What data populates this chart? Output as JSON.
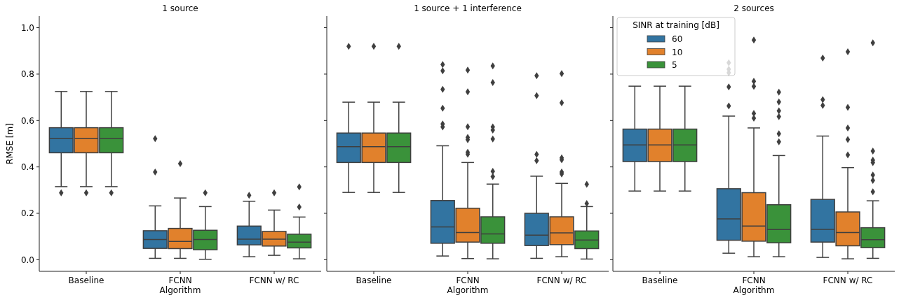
{
  "chart_data": [
    {
      "type": "box",
      "title": "1 source",
      "xlabel": "Algorithm",
      "ylabel": "RMSE [m]",
      "categories": [
        "Baseline",
        "FCNN",
        "FCNN w/ RC"
      ],
      "ylim": [
        -0.05,
        1.05
      ],
      "yticks": [
        {
          "value": 0,
          "label": "0.0"
        },
        0.2,
        0.4,
        0.6,
        0.8,
        {
          "value": 1,
          "label": "1.0"
        }
      ],
      "grid": false,
      "legend": false,
      "marker": "diamond",
      "series": [
        {
          "color": "#3274a1",
          "boxes": [
            {
              "low": 0.315,
              "q1": 0.461,
              "median": 0.522,
              "q3": 0.569,
              "high": 0.725,
              "outliers": [
                0.288
              ]
            },
            {
              "low": 0.006,
              "q1": 0.049,
              "median": 0.087,
              "q3": 0.125,
              "high": 0.232,
              "outliers": [
                0.522,
                0.378
              ]
            },
            {
              "low": 0.013,
              "q1": 0.064,
              "median": 0.089,
              "q3": 0.145,
              "high": 0.252,
              "outliers": [
                0.278
              ]
            }
          ]
        },
        {
          "color": "#e1812c",
          "boxes": [
            {
              "low": 0.315,
              "q1": 0.461,
              "median": 0.522,
              "q3": 0.569,
              "high": 0.725,
              "outliers": [
                0.288
              ]
            },
            {
              "low": 0.006,
              "q1": 0.048,
              "median": 0.079,
              "q3": 0.135,
              "high": 0.266,
              "outliers": [
                0.414
              ]
            },
            {
              "low": 0.019,
              "q1": 0.059,
              "median": 0.089,
              "q3": 0.122,
              "high": 0.214,
              "outliers": [
                0.288
              ]
            }
          ]
        },
        {
          "color": "#3a923a",
          "boxes": [
            {
              "low": 0.315,
              "q1": 0.461,
              "median": 0.522,
              "q3": 0.569,
              "high": 0.725,
              "outliers": [
                0.288
              ]
            },
            {
              "low": 0.002,
              "q1": 0.043,
              "median": 0.087,
              "q3": 0.127,
              "high": 0.229,
              "outliers": [
                0.288
              ]
            },
            {
              "low": 0.004,
              "q1": 0.051,
              "median": 0.076,
              "q3": 0.11,
              "high": 0.184,
              "outliers": [
                0.314,
                0.227
              ]
            }
          ]
        }
      ]
    },
    {
      "type": "box",
      "title": "1 source + 1 interference",
      "xlabel": "Algorithm",
      "categories": [
        "Baseline",
        "FCNN",
        "FCNN w/ RC"
      ],
      "ylim": [
        -0.05,
        1.05
      ],
      "yticks": [
        0,
        0.2,
        0.4,
        0.6,
        0.8,
        1
      ],
      "tick_labels": "x",
      "grid": false,
      "legend": false,
      "marker": "diamond",
      "series": [
        {
          "color": "#3274a1",
          "boxes": [
            {
              "low": 0.29,
              "q1": 0.419,
              "median": 0.487,
              "q3": 0.546,
              "high": 0.679,
              "outliers": [
                0.92
              ]
            },
            {
              "low": 0.016,
              "q1": 0.071,
              "median": 0.141,
              "q3": 0.255,
              "high": 0.491,
              "outliers": [
                0.841,
                0.814,
                0.734,
                0.653,
                0.585,
                0.572
              ]
            },
            {
              "low": 0.006,
              "q1": 0.061,
              "median": 0.106,
              "q3": 0.2,
              "high": 0.36,
              "outliers": [
                0.793,
                0.707,
                0.454,
                0.427
              ]
            }
          ]
        },
        {
          "color": "#e1812c",
          "boxes": [
            {
              "low": 0.29,
              "q1": 0.419,
              "median": 0.487,
              "q3": 0.546,
              "high": 0.679,
              "outliers": [
                0.92
              ]
            },
            {
              "low": 0.005,
              "q1": 0.076,
              "median": 0.117,
              "q3": 0.222,
              "high": 0.419,
              "outliers": [
                0.817,
                0.724,
                0.573,
                0.527,
                0.517,
                0.463,
                0.455
              ]
            },
            {
              "low": 0.013,
              "q1": 0.065,
              "median": 0.116,
              "q3": 0.185,
              "high": 0.329,
              "outliers": [
                0.802,
                0.676,
                0.439,
                0.431,
                0.378,
                0.37
              ]
            }
          ]
        },
        {
          "color": "#3a923a",
          "boxes": [
            {
              "low": 0.29,
              "q1": 0.419,
              "median": 0.487,
              "q3": 0.546,
              "high": 0.679,
              "outliers": [
                0.92
              ]
            },
            {
              "low": 0.004,
              "q1": 0.071,
              "median": 0.111,
              "q3": 0.185,
              "high": 0.326,
              "outliers": [
                0.835,
                0.764,
                0.572,
                0.559,
                0.52,
                0.381,
                0.358
              ]
            },
            {
              "low": 0.003,
              "q1": 0.048,
              "median": 0.085,
              "q3": 0.124,
              "high": 0.229,
              "outliers": [
                0.325,
                0.242
              ]
            }
          ]
        }
      ]
    },
    {
      "type": "box",
      "title": "2 sources",
      "xlabel": "Algorithm",
      "legend_title": "SINR at training [dB]",
      "categories": [
        "Baseline",
        "FCNN",
        "FCNN w/ RC"
      ],
      "ylim": [
        -0.05,
        1.05
      ],
      "yticks": [
        0,
        0.2,
        0.4,
        0.6,
        0.8,
        1
      ],
      "tick_labels": "x",
      "grid": false,
      "legend": "top left",
      "marker": "diamond",
      "series": [
        {
          "name": "60",
          "color": "#3274a1",
          "boxes": [
            {
              "low": 0.296,
              "q1": 0.423,
              "median": 0.495,
              "q3": 0.563,
              "high": 0.748
            },
            {
              "low": 0.028,
              "q1": 0.084,
              "median": 0.176,
              "q3": 0.306,
              "high": 0.619,
              "outliers": [
                0.849,
                0.821,
                0.806,
                0.745,
                0.663
              ]
            },
            {
              "low": 0.01,
              "q1": 0.076,
              "median": 0.131,
              "q3": 0.26,
              "high": 0.533,
              "outliers": [
                0.869,
                0.69,
                0.665
              ]
            }
          ]
        },
        {
          "name": "10",
          "color": "#e1812c",
          "boxes": [
            {
              "low": 0.296,
              "q1": 0.423,
              "median": 0.495,
              "q3": 0.563,
              "high": 0.748
            },
            {
              "low": 0.013,
              "q1": 0.08,
              "median": 0.145,
              "q3": 0.289,
              "high": 0.568,
              "outliers": [
                0.947,
                0.769,
                0.747,
                0.63,
                0.61
              ]
            },
            {
              "low": 0.004,
              "q1": 0.06,
              "median": 0.117,
              "q3": 0.206,
              "high": 0.397,
              "outliers": [
                0.896,
                0.657,
                0.568,
                0.518,
                0.452
              ]
            }
          ]
        },
        {
          "name": "5",
          "color": "#3a923a",
          "boxes": [
            {
              "low": 0.296,
              "q1": 0.423,
              "median": 0.495,
              "q3": 0.563,
              "high": 0.748
            },
            {
              "low": 0.013,
              "q1": 0.073,
              "median": 0.13,
              "q3": 0.237,
              "high": 0.449,
              "outliers": [
                0.722,
                0.68,
                0.642,
                0.617,
                0.543,
                0.508
              ]
            },
            {
              "low": 0.006,
              "q1": 0.052,
              "median": 0.086,
              "q3": 0.138,
              "high": 0.254,
              "outliers": [
                0.935,
                0.468,
                0.429,
                0.419,
                0.365,
                0.342,
                0.293
              ]
            }
          ]
        }
      ]
    }
  ]
}
